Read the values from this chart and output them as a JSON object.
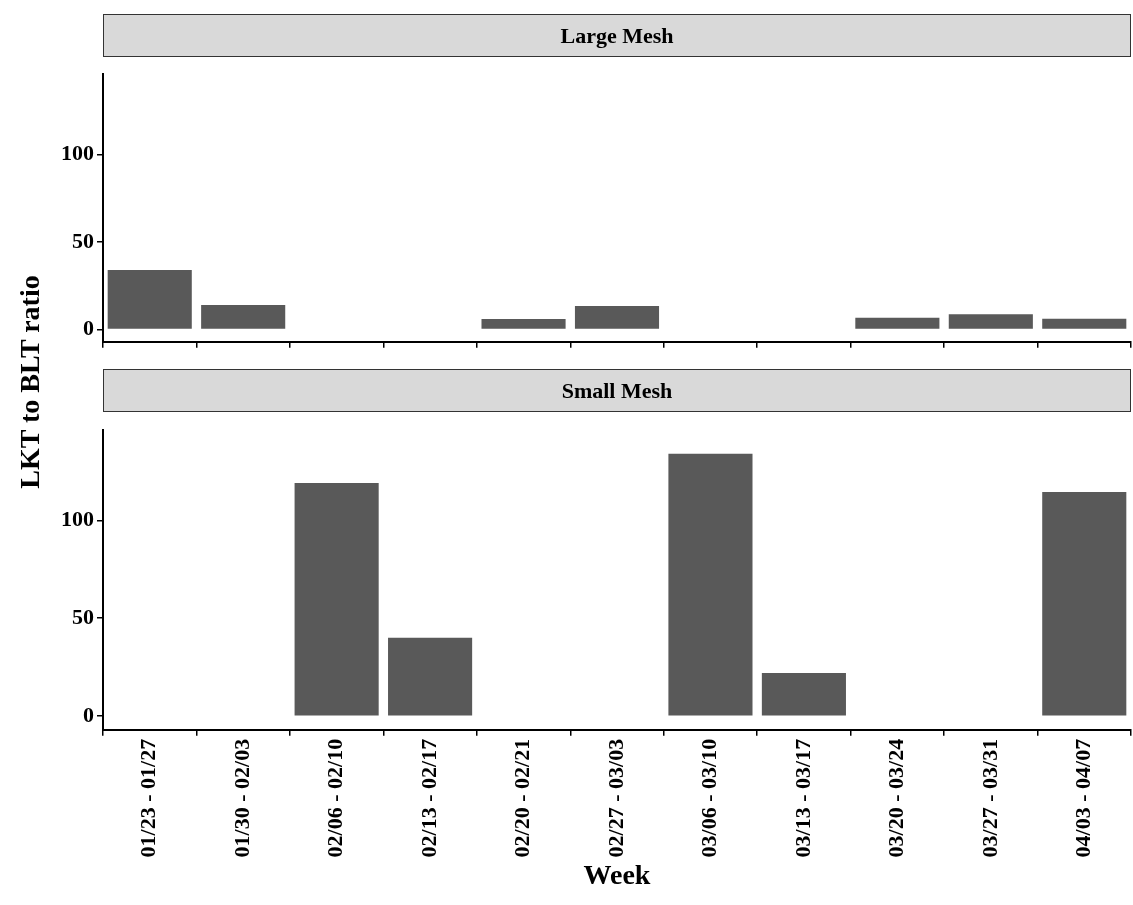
{
  "chart_data": [
    {
      "type": "bar",
      "title": "Large Mesh",
      "ylabel": "LKT to BLT ratio",
      "categories": [
        null,
        null,
        null,
        null,
        null,
        null,
        null,
        null,
        null,
        null,
        null
      ],
      "values": [
        34,
        14,
        null,
        null,
        6,
        13.5,
        null,
        null,
        6.7,
        8.8,
        6.2
      ],
      "color": "#595959",
      "ylim": [
        -7,
        146
      ],
      "yticks": [
        0,
        50,
        100
      ],
      "grid": false,
      "tick_labels": "y"
    },
    {
      "type": "bar",
      "title": "Small Mesh",
      "xlabel": "Week",
      "categories": [
        "01/23 - 01/27",
        "01/30 - 02/03",
        "02/06 - 02/10",
        "02/13 - 02/17",
        "02/20 - 02/21",
        "02/27 - 03/03",
        "03/06 - 03/10",
        "03/13 - 03/17",
        "03/20 - 03/24",
        "03/27 - 03/31",
        "04/03 - 04/07"
      ],
      "values": [
        null,
        null,
        119,
        40,
        null,
        null,
        134,
        22,
        null,
        null,
        114.5
      ],
      "color": "#595959",
      "ylim": [
        -7,
        146
      ],
      "yticks": [
        0,
        50,
        100
      ],
      "grid": false
    }
  ]
}
